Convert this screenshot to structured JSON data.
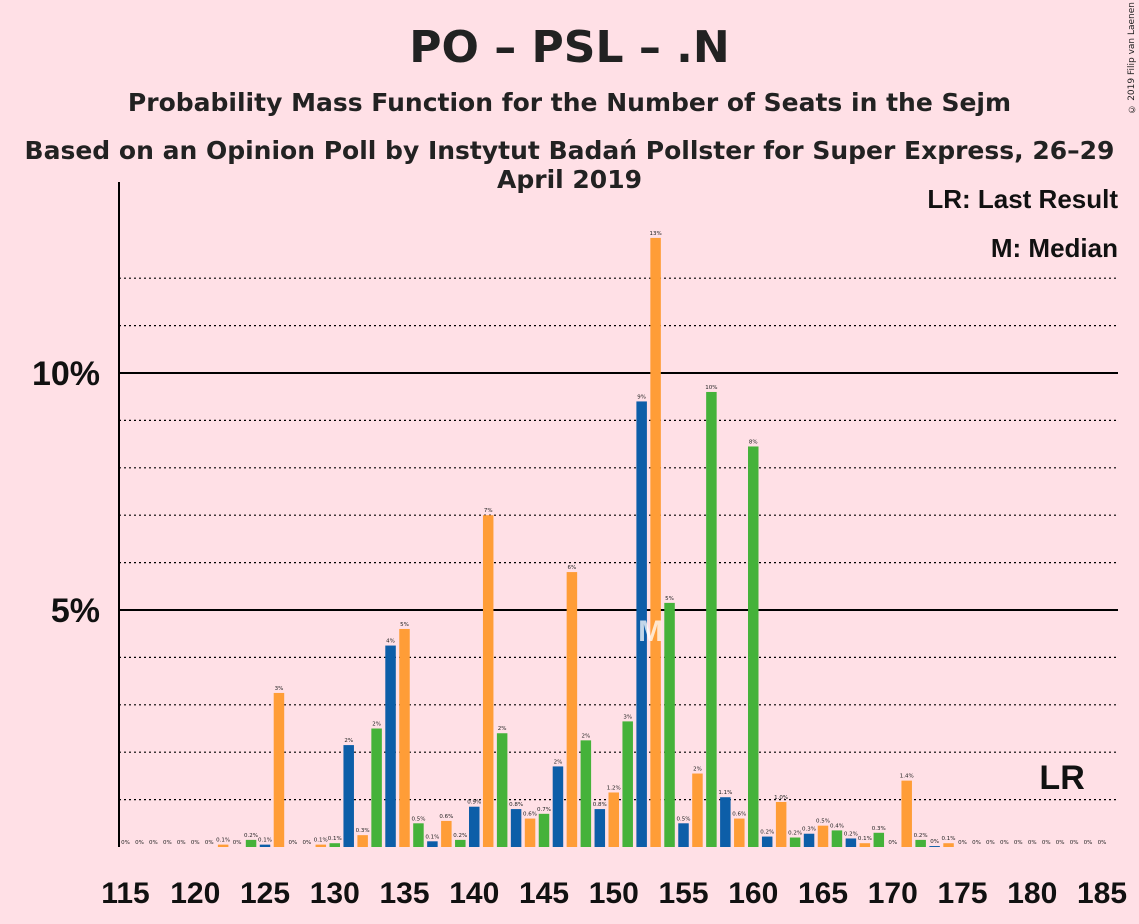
{
  "title": "PO – PSL – .N",
  "subtitle": "Probability Mass Function for the Number of Seats in the Sejm",
  "subtitle2": "Based on an Opinion Poll by Instytut Badań Pollster for Super Express, 26–29 April 2019",
  "copyright": "© 2019 Filip van Laenen",
  "legend": {
    "lr": "LR: Last Result",
    "median": "M: Median"
  },
  "markers": {
    "lr_label": "LR",
    "median_label": "M"
  },
  "colors": {
    "blue": "#0d5ea8",
    "orange": "#ff9d37",
    "green": "#45b23a",
    "background": "#ffe0e6"
  },
  "chart_data": {
    "type": "bar",
    "ylim": [
      0,
      14
    ],
    "y_ticks": [
      {
        "value": 5,
        "label": "5%"
      },
      {
        "value": 10,
        "label": "10%"
      }
    ],
    "x_ticks": [
      115,
      120,
      125,
      130,
      135,
      140,
      145,
      150,
      155,
      160,
      165,
      170,
      175,
      180,
      185
    ],
    "median_seat": 153,
    "last_result_seat": 183,
    "bars": [
      {
        "seat": 115,
        "value": 0,
        "label": "0%",
        "color": "blue"
      },
      {
        "seat": 116,
        "value": 0,
        "label": "0%",
        "color": "orange"
      },
      {
        "seat": 117,
        "value": 0,
        "label": "0%",
        "color": "green"
      },
      {
        "seat": 118,
        "value": 0,
        "label": "0%",
        "color": "blue"
      },
      {
        "seat": 119,
        "value": 0,
        "label": "0%",
        "color": "orange"
      },
      {
        "seat": 120,
        "value": 0,
        "label": "0%",
        "color": "green"
      },
      {
        "seat": 121,
        "value": 0,
        "label": "0%",
        "color": "blue"
      },
      {
        "seat": 122,
        "value": 0.05,
        "label": "0.1%",
        "color": "orange"
      },
      {
        "seat": 123,
        "value": 0,
        "label": "0%",
        "color": "green"
      },
      {
        "seat": 124,
        "value": 0.15,
        "label": "0.2%",
        "color": "green"
      },
      {
        "seat": 125,
        "value": 0.05,
        "label": "0.1%",
        "color": "blue"
      },
      {
        "seat": 126,
        "value": 3.25,
        "label": "3%",
        "color": "orange"
      },
      {
        "seat": 127,
        "value": 0,
        "label": "0%",
        "color": "green"
      },
      {
        "seat": 128,
        "value": 0,
        "label": "0%",
        "color": "blue"
      },
      {
        "seat": 129,
        "value": 0.05,
        "label": "0.1%",
        "color": "orange"
      },
      {
        "seat": 130,
        "value": 0.08,
        "label": "0.1%",
        "color": "green"
      },
      {
        "seat": 131,
        "value": 2.15,
        "label": "2%",
        "color": "blue"
      },
      {
        "seat": 132,
        "value": 0.25,
        "label": "0.3%",
        "color": "orange"
      },
      {
        "seat": 133,
        "value": 2.5,
        "label": "2%",
        "color": "green"
      },
      {
        "seat": 134,
        "value": 4.25,
        "label": "4%",
        "color": "blue"
      },
      {
        "seat": 135,
        "value": 4.6,
        "label": "5%",
        "color": "orange"
      },
      {
        "seat": 136,
        "value": 0.5,
        "label": "0.5%",
        "color": "green"
      },
      {
        "seat": 137,
        "value": 0.12,
        "label": "0.1%",
        "color": "blue"
      },
      {
        "seat": 138,
        "value": 0.55,
        "label": "0.6%",
        "color": "orange"
      },
      {
        "seat": 139,
        "value": 0.15,
        "label": "0.2%",
        "color": "green"
      },
      {
        "seat": 140,
        "value": 0.85,
        "label": "0.9%",
        "color": "blue"
      },
      {
        "seat": 141,
        "value": 7.0,
        "label": "7%",
        "color": "orange"
      },
      {
        "seat": 142,
        "value": 2.4,
        "label": "2%",
        "color": "green"
      },
      {
        "seat": 143,
        "value": 0.8,
        "label": "0.8%",
        "color": "blue"
      },
      {
        "seat": 144,
        "value": 0.6,
        "label": "0.6%",
        "color": "orange"
      },
      {
        "seat": 145,
        "value": 0.7,
        "label": "0.7%",
        "color": "green"
      },
      {
        "seat": 146,
        "value": 1.7,
        "label": "2%",
        "color": "blue"
      },
      {
        "seat": 147,
        "value": 5.8,
        "label": "6%",
        "color": "orange"
      },
      {
        "seat": 148,
        "value": 2.25,
        "label": "2%",
        "color": "green"
      },
      {
        "seat": 149,
        "value": 0.8,
        "label": "0.8%",
        "color": "blue"
      },
      {
        "seat": 150,
        "value": 1.15,
        "label": "1.2%",
        "color": "orange"
      },
      {
        "seat": 151,
        "value": 2.65,
        "label": "3%",
        "color": "green"
      },
      {
        "seat": 152,
        "value": 9.4,
        "label": "9%",
        "color": "blue"
      },
      {
        "seat": 153,
        "value": 12.85,
        "label": "13%",
        "color": "orange"
      },
      {
        "seat": 154,
        "value": 5.15,
        "label": "5%",
        "color": "green"
      },
      {
        "seat": 155,
        "value": 0.5,
        "label": "0.5%",
        "color": "blue"
      },
      {
        "seat": 156,
        "value": 1.55,
        "label": "2%",
        "color": "orange"
      },
      {
        "seat": 157,
        "value": 9.6,
        "label": "10%",
        "color": "green"
      },
      {
        "seat": 158,
        "value": 1.05,
        "label": "1.1%",
        "color": "blue"
      },
      {
        "seat": 159,
        "value": 0.6,
        "label": "0.6%",
        "color": "orange"
      },
      {
        "seat": 160,
        "value": 8.45,
        "label": "8%",
        "color": "green"
      },
      {
        "seat": 161,
        "value": 0.22,
        "label": "0.2%",
        "color": "blue"
      },
      {
        "seat": 162,
        "value": 0.95,
        "label": "1.0%",
        "color": "orange"
      },
      {
        "seat": 163,
        "value": 0.2,
        "label": "0.2%",
        "color": "green"
      },
      {
        "seat": 164,
        "value": 0.28,
        "label": "0.3%",
        "color": "blue"
      },
      {
        "seat": 165,
        "value": 0.45,
        "label": "0.5%",
        "color": "orange"
      },
      {
        "seat": 166,
        "value": 0.35,
        "label": "0.4%",
        "color": "green"
      },
      {
        "seat": 167,
        "value": 0.18,
        "label": "0.2%",
        "color": "blue"
      },
      {
        "seat": 168,
        "value": 0.08,
        "label": "0.1%",
        "color": "orange"
      },
      {
        "seat": 169,
        "value": 0.3,
        "label": "0.3%",
        "color": "green"
      },
      {
        "seat": 170,
        "value": 0,
        "label": "0%",
        "color": "blue"
      },
      {
        "seat": 171,
        "value": 1.4,
        "label": "1.4%",
        "color": "orange"
      },
      {
        "seat": 172,
        "value": 0.15,
        "label": "0.2%",
        "color": "green"
      },
      {
        "seat": 173,
        "value": 0.02,
        "label": "0%",
        "color": "blue"
      },
      {
        "seat": 174,
        "value": 0.08,
        "label": "0.1%",
        "color": "orange"
      },
      {
        "seat": 175,
        "value": 0,
        "label": "0%",
        "color": "green"
      },
      {
        "seat": 176,
        "value": 0,
        "label": "0%",
        "color": "blue"
      },
      {
        "seat": 177,
        "value": 0,
        "label": "0%",
        "color": "orange"
      },
      {
        "seat": 178,
        "value": 0,
        "label": "0%",
        "color": "green"
      },
      {
        "seat": 179,
        "value": 0,
        "label": "0%",
        "color": "blue"
      },
      {
        "seat": 180,
        "value": 0,
        "label": "0%",
        "color": "orange"
      },
      {
        "seat": 181,
        "value": 0,
        "label": "0%",
        "color": "green"
      },
      {
        "seat": 182,
        "value": 0,
        "label": "0%",
        "color": "blue"
      },
      {
        "seat": 183,
        "value": 0,
        "label": "0%",
        "color": "orange"
      },
      {
        "seat": 184,
        "value": 0,
        "label": "0%",
        "color": "green"
      },
      {
        "seat": 185,
        "value": 0,
        "label": "0%",
        "color": "blue"
      }
    ]
  }
}
